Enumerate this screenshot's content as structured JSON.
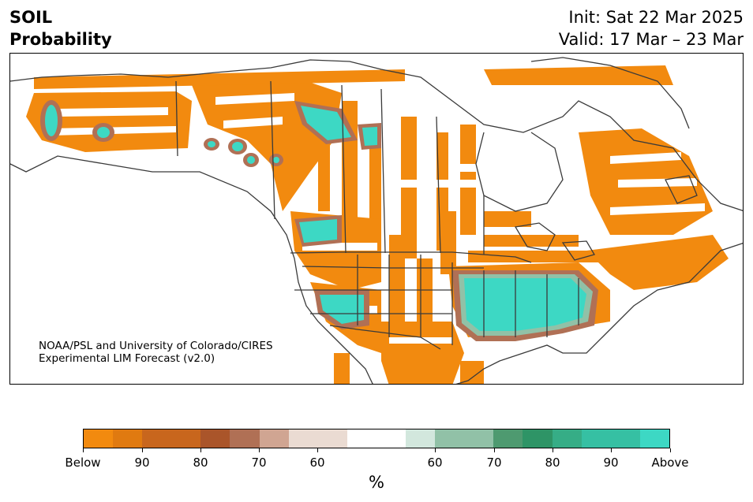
{
  "header": {
    "title_line1": "SOIL",
    "title_line2": "Probability",
    "init_text": "Init: Sat 22 Mar 2025",
    "valid_text": "Valid: 17 Mar – 23 Mar"
  },
  "credit": {
    "line1": "NOAA/PSL and University of Colorado/CIRES",
    "line2": "Experimental LIM Forecast (v2.0)"
  },
  "colorbar": {
    "colors": [
      "#f28a0f",
      "#e07a10",
      "#c8661d",
      "#c8661d",
      "#aa552a",
      "#b07055",
      "#d0a592",
      "#eadbd2",
      "#eadbd2",
      "#ffffff",
      "#ffffff",
      "#d2e7dd",
      "#91c1a7",
      "#91c1a7",
      "#4e9a70",
      "#2e9466",
      "#36ad86",
      "#36c0a3",
      "#36c0a3",
      "#3dd8c4"
    ],
    "labels": [
      "Below",
      "90",
      "80",
      "70",
      "60",
      "60",
      "70",
      "80",
      "90",
      "Above"
    ],
    "units": "%"
  },
  "legend_colors": {
    "below": "#f28a0f",
    "above": "#3dd8c4",
    "coast": "#3a3a3a"
  }
}
